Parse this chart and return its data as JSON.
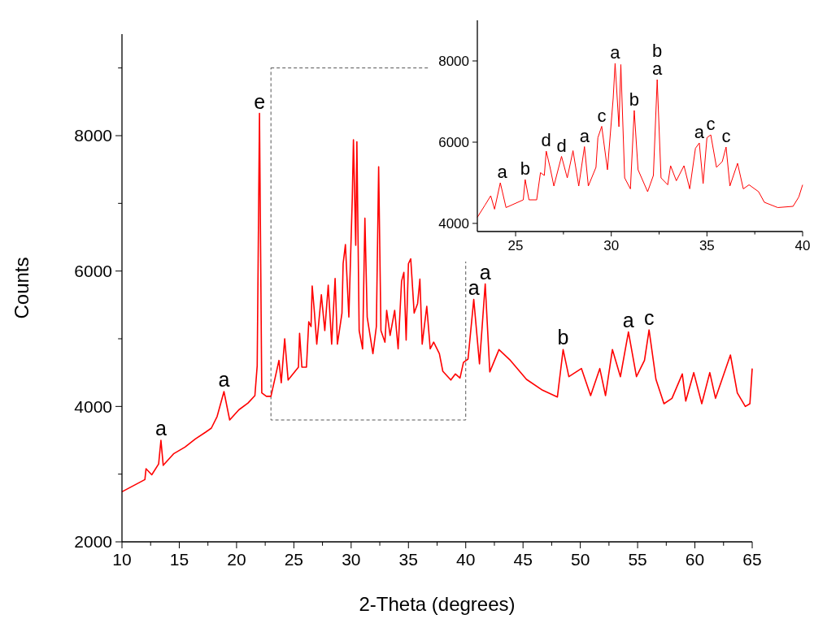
{
  "chart_data": [
    {
      "type": "line",
      "xlabel": "2-Theta (degrees)",
      "ylabel": "Counts",
      "xlim": [
        10,
        65
      ],
      "ylim": [
        2000,
        9500
      ],
      "xticks": [
        10,
        {
          "value": 12.5,
          "label": null
        },
        15,
        {
          "value": 17.5,
          "label": null
        },
        20,
        {
          "value": 22.5,
          "label": null
        },
        25,
        {
          "value": 27.5,
          "label": null
        },
        30,
        {
          "value": 32.5,
          "label": null
        },
        35,
        {
          "value": 37.5,
          "label": null
        },
        40,
        {
          "value": 42.5,
          "label": null
        },
        45,
        {
          "value": 47.5,
          "label": null
        },
        50,
        {
          "value": 52.5,
          "label": null
        },
        55,
        {
          "value": 57.5,
          "label": null
        },
        60,
        {
          "value": 62.5,
          "label": null
        },
        65
      ],
      "yticks": [
        2000,
        {
          "value": 3000,
          "label": null
        },
        4000,
        {
          "value": 5000,
          "label": null
        },
        6000,
        {
          "value": 7000,
          "label": null
        },
        8000,
        {
          "value": 9000,
          "label": null
        }
      ],
      "grid": false,
      "marker": "none",
      "line_style": "solid",
      "series": [
        {
          "color": "#ff0000",
          "x": [
            10,
            12,
            12.1,
            12.6,
            13.2,
            13.4,
            13.6,
            14.5,
            15.5,
            16.4,
            17.3,
            17.8,
            18.3,
            18.9,
            19.4,
            20.2,
            21,
            21.6,
            21.8,
            22,
            22.2,
            22.6,
            23,
            23.4,
            23.7,
            23.9,
            24.2,
            24.5,
            25.4,
            25.5,
            25.7,
            26.1,
            26.3,
            26.5,
            26.6,
            26.8,
            27,
            27.4,
            27.7,
            28,
            28.3,
            28.6,
            28.8,
            29.2,
            29.3,
            29.5,
            29.8,
            30.1,
            30.2,
            30.4,
            30.5,
            30.7,
            31,
            31.2,
            31.4,
            31.9,
            32.2,
            32.4,
            32.6,
            32.95,
            33.1,
            33.4,
            33.8,
            34.1,
            34.4,
            34.6,
            34.8,
            35,
            35.2,
            35.5,
            35.8,
            36,
            36.2,
            36.6,
            36.9,
            37.2,
            37.7,
            38,
            38.7,
            39.1,
            39.5,
            39.8,
            40.2,
            40.7,
            41.2,
            41.7,
            42.1,
            42.9,
            43.9,
            45.3,
            46.7,
            48,
            48.5,
            49,
            50.1,
            50.9,
            51.7,
            52.2,
            52.8,
            53.5,
            54.2,
            54.9,
            55.6,
            56,
            56.6,
            57.3,
            58,
            58.9,
            59.2,
            59.9,
            60.6,
            61.3,
            61.8,
            63.1,
            63.7,
            64.4,
            64.8,
            65
          ],
          "values": [
            2740,
            2920,
            3080,
            2990,
            3150,
            3500,
            3130,
            3300,
            3400,
            3520,
            3620,
            3680,
            3850,
            4220,
            3800,
            3950,
            4050,
            4160,
            4600,
            8330,
            4200,
            4150,
            4150,
            4450,
            4680,
            4350,
            5000,
            4390,
            4580,
            5080,
            4580,
            4580,
            5250,
            5180,
            5780,
            5380,
            4920,
            5650,
            5120,
            5790,
            4920,
            5890,
            4920,
            5380,
            6110,
            6390,
            5320,
            7080,
            7940,
            6380,
            7910,
            5120,
            4850,
            6780,
            5320,
            4780,
            5180,
            7540,
            5120,
            4950,
            5420,
            5050,
            5420,
            4850,
            5850,
            5980,
            4980,
            6110,
            6180,
            5380,
            5520,
            5880,
            4920,
            5480,
            4850,
            4950,
            4780,
            4520,
            4390,
            4480,
            4420,
            4650,
            4700,
            5580,
            4630,
            5810,
            4510,
            4840,
            4680,
            4400,
            4240,
            4140,
            4840,
            4440,
            4560,
            4160,
            4560,
            4160,
            4840,
            4440,
            5100,
            4440,
            4680,
            5130,
            4400,
            4040,
            4120,
            4480,
            4080,
            4500,
            4040,
            4500,
            4120,
            4760,
            4200,
            4000,
            4040,
            4560
          ]
        }
      ],
      "annotations": [
        {
          "text": "a",
          "x": 13.4,
          "y": 3500
        },
        {
          "text": "a",
          "x": 18.9,
          "y": 4220
        },
        {
          "text": "e",
          "x": 22,
          "y": 8330
        },
        {
          "text": "a",
          "x": 40.7,
          "y": 5580
        },
        {
          "text": "a",
          "x": 41.7,
          "y": 5810
        },
        {
          "text": "b",
          "x": 48.5,
          "y": 4840
        },
        {
          "text": "a",
          "x": 54.2,
          "y": 5100
        },
        {
          "text": "c",
          "x": 56,
          "y": 5130
        }
      ]
    },
    {
      "type": "line",
      "xlim": [
        23,
        40
      ],
      "ylim": [
        3800,
        9000
      ],
      "xticks": [
        25,
        {
          "value": 27.5,
          "label": null
        },
        30,
        {
          "value": 32.5,
          "label": null
        },
        35,
        {
          "value": 37.5,
          "label": null
        },
        40
      ],
      "yticks": [
        4000,
        6000,
        8000
      ],
      "grid": false,
      "marker": "none",
      "line_style": "solid",
      "series": [
        {
          "color": "#ff0000",
          "x": [
            23,
            23.4,
            23.7,
            23.9,
            24.2,
            24.5,
            25.4,
            25.5,
            25.7,
            26.1,
            26.3,
            26.5,
            26.6,
            26.8,
            27,
            27.4,
            27.7,
            28,
            28.3,
            28.6,
            28.8,
            29.2,
            29.3,
            29.5,
            29.8,
            30.1,
            30.2,
            30.4,
            30.5,
            30.7,
            31,
            31.2,
            31.4,
            31.9,
            32.2,
            32.4,
            32.6,
            32.95,
            33.1,
            33.4,
            33.8,
            34.1,
            34.4,
            34.6,
            34.8,
            35,
            35.2,
            35.5,
            35.8,
            36,
            36.2,
            36.6,
            36.9,
            37.2,
            37.7,
            38,
            38.7,
            39.5,
            39.8,
            40
          ],
          "values": [
            4150,
            4450,
            4680,
            4350,
            5000,
            4390,
            4580,
            5080,
            4580,
            4580,
            5250,
            5180,
            5780,
            5380,
            4920,
            5650,
            5120,
            5790,
            4920,
            5890,
            4920,
            5380,
            6110,
            6390,
            5320,
            7080,
            7940,
            6380,
            7910,
            5120,
            4850,
            6780,
            5320,
            4780,
            5180,
            7540,
            5120,
            4950,
            5420,
            5050,
            5420,
            4850,
            5850,
            5980,
            4980,
            6110,
            6180,
            5380,
            5520,
            5880,
            4920,
            5480,
            4850,
            4950,
            4780,
            4520,
            4390,
            4420,
            4650,
            4950
          ]
        }
      ],
      "annotations": [
        {
          "text": "a",
          "x": 24.3,
          "y": 5000
        },
        {
          "text": "b",
          "x": 25.5,
          "y": 5080
        },
        {
          "text": "d",
          "x": 26.6,
          "y": 5780
        },
        {
          "text": "d",
          "x": 27.4,
          "y": 5650
        },
        {
          "text": "a",
          "x": 28.6,
          "y": 5890
        },
        {
          "text": "c",
          "x": 29.5,
          "y": 6390
        },
        {
          "text": "a",
          "x": 30.2,
          "y": 7940
        },
        {
          "text": "b",
          "x": 31.2,
          "y": 6780
        },
        {
          "text": "a",
          "x": 32.4,
          "y": 7540
        },
        {
          "text": "b",
          "x": 32.4,
          "y": 7540
        },
        {
          "text": "a",
          "x": 34.6,
          "y": 5980
        },
        {
          "text": "c",
          "x": 35.2,
          "y": 6180
        },
        {
          "text": "c",
          "x": 36,
          "y": 5880
        }
      ]
    }
  ]
}
